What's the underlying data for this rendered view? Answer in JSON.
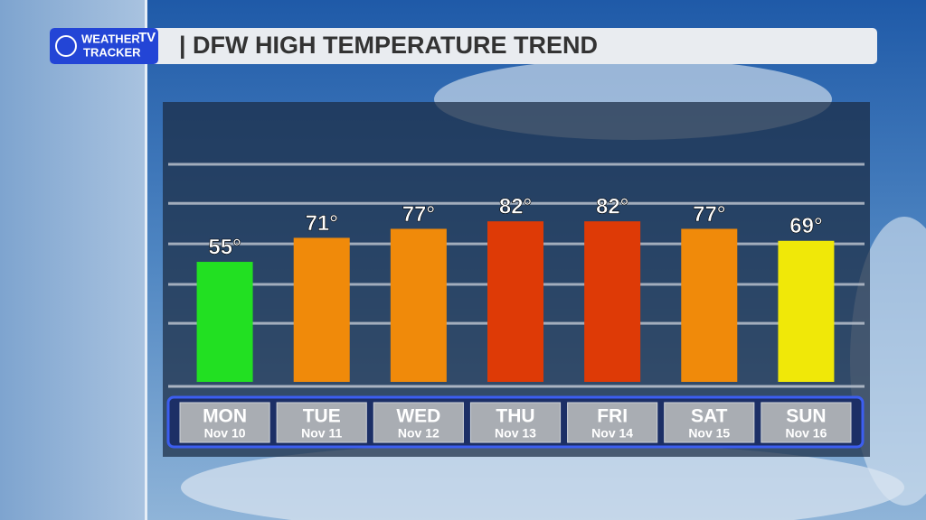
{
  "logo": {
    "line1": "WEATHER",
    "tv": "TV",
    "line2": "TRACKER"
  },
  "chart_data": {
    "type": "bar",
    "title": "| DFW HIGH TEMPERATURE TREND",
    "categories": [
      "MON",
      "TUE",
      "WED",
      "THU",
      "FRI",
      "SAT",
      "SUN"
    ],
    "dates": [
      "Nov 10",
      "Nov 11",
      "Nov 12",
      "Nov 13",
      "Nov 14",
      "Nov 15",
      "Nov 16"
    ],
    "values": [
      55,
      71,
      77,
      82,
      82,
      77,
      69
    ],
    "value_labels": [
      "55°",
      "71°",
      "77°",
      "82°",
      "82°",
      "77°",
      "69°"
    ],
    "colors": [
      "#22e022",
      "#f08a0a",
      "#f08a0a",
      "#de3a06",
      "#de3a06",
      "#f08a0a",
      "#f0e808"
    ],
    "ylim": [
      -25,
      120
    ],
    "yticks": [
      14,
      40,
      67,
      94,
      120
    ],
    "grid": true
  }
}
